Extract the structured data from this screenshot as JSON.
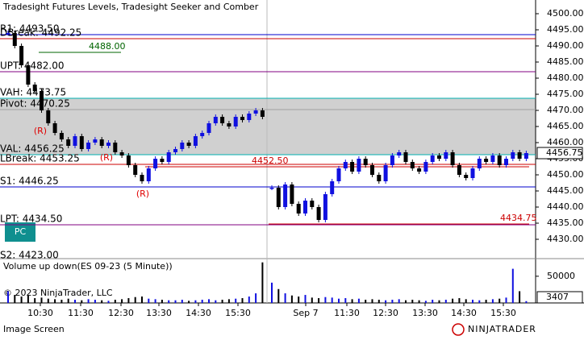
{
  "chart_data": {
    "type": "candlestick",
    "title": "Tradesight Futures Levels, Tradesight Seeker and Comber",
    "ylim": [
      4424.25,
      4504.25
    ],
    "yticks": [
      {
        "value": 4430,
        "label": "4430.00"
      },
      {
        "value": 4435,
        "label": "4435.00"
      },
      {
        "value": 4440,
        "label": "4440.00"
      },
      {
        "value": 4445,
        "label": "4445.00"
      },
      {
        "value": 4450,
        "label": "4450.00"
      },
      {
        "value": 4455,
        "label": "4455.00"
      },
      {
        "value": 4460,
        "label": "4460.00"
      },
      {
        "value": 4465,
        "label": "4465.00"
      },
      {
        "value": 4470,
        "label": "4470.00"
      },
      {
        "value": 4475,
        "label": "4475.00"
      },
      {
        "value": 4480,
        "label": "4480.00"
      },
      {
        "value": 4485,
        "label": "4485.00"
      },
      {
        "value": 4490,
        "label": "4490.00"
      },
      {
        "value": 4495,
        "label": "4495.00"
      },
      {
        "value": 4500,
        "label": "4500.00"
      }
    ],
    "x_labels": [
      "10:30",
      "11:30",
      "12:30",
      "13:30",
      "14:30",
      "15:30",
      "Sep 7",
      "11:30",
      "12:30",
      "13:30",
      "14:30",
      "15:30"
    ],
    "up_color": "#1010e0",
    "down_color": "#000000",
    "values": [
      4494,
      4490,
      4484,
      4478,
      4476,
      4470,
      4466,
      4463,
      4461,
      4459,
      4462,
      4458,
      4460,
      4461,
      4459,
      4460,
      4457,
      4456,
      4453,
      4450,
      4448,
      4452,
      4455,
      4454,
      4457,
      4458,
      4460,
      4459,
      4462,
      4463,
      4466,
      4468,
      4466,
      4465,
      4468,
      4467,
      4469,
      4470,
      4468,
      4446,
      4440,
      4447,
      4441,
      4438,
      4442,
      4440,
      4436,
      4444,
      4448,
      4452,
      4454,
      4451,
      4455,
      4453,
      4450,
      4448,
      4453,
      4456,
      4457,
      4454,
      4452,
      4451,
      4454,
      4456,
      4455,
      4457,
      4453,
      4450,
      4449,
      4452,
      4455,
      4454,
      4456,
      4453,
      4455,
      4457,
      4455,
      4456.75
    ],
    "levels": [
      {
        "label": "R1: 4493.50",
        "value": 4493.5,
        "color": "#0000cc"
      },
      {
        "label": "DBreak: 4492.25",
        "value": 4492.25,
        "color": "#cc0000"
      },
      {
        "label": "UPT: 4482.00",
        "value": 4482,
        "color": "#800080"
      },
      {
        "label": "VAH: 4473.75",
        "value": 4473.75,
        "color": "#00b0b0"
      },
      {
        "label": "Pivot: 4470.25",
        "value": 4470.25,
        "color": "#a0a0a0"
      },
      {
        "label": "VAL: 4456.25",
        "value": 4456.25,
        "color": "#00b0b0"
      },
      {
        "label": "LBreak: 4453.25",
        "value": 4453.25,
        "color": "#cc0000"
      },
      {
        "label": "S1: 4446.25",
        "value": 4446.25,
        "color": "#0000cc"
      },
      {
        "label": "LPT: 4434.50",
        "value": 4434.5,
        "color": "#800080"
      },
      {
        "label": "S2: 4423.00",
        "value": 4423,
        "color": "#0000cc"
      }
    ],
    "band_color": "#c4c4c4",
    "price_labels": [
      {
        "value": 4488,
        "label": "4488.00",
        "color": "#006400"
      },
      {
        "value": 4452.5,
        "label": "4452.50",
        "color": "#cc0000"
      },
      {
        "value": 4434.75,
        "label": "4434.75",
        "color": "#cc0000"
      }
    ],
    "markers": [
      "(R)",
      "(R)",
      "(R)"
    ],
    "button": "PC",
    "volume": {
      "title": "Volume up down(ES 09-23 (5 Minute))",
      "ylim": [
        0,
        80000
      ],
      "yticks": [
        50000
      ],
      "values": [
        22000,
        15000,
        12000,
        14000,
        9000,
        10000,
        8000,
        7000,
        6000,
        8000,
        6000,
        5000,
        7000,
        6000,
        5000,
        4000,
        6000,
        7000,
        9000,
        11000,
        12000,
        8000,
        7000,
        6000,
        5000,
        5000,
        6000,
        4000,
        5000,
        6000,
        7000,
        5000,
        6000,
        7000,
        8000,
        9000,
        12000,
        18000,
        76000,
        38000,
        26000,
        18000,
        14000,
        12000,
        15000,
        10000,
        9000,
        11000,
        10000,
        8000,
        9000,
        7000,
        8000,
        6000,
        7000,
        6000,
        5000,
        6000,
        7000,
        5000,
        6000,
        5000,
        4000,
        6000,
        5000,
        6000,
        8000,
        9000,
        7000,
        6000,
        5000,
        6000,
        7000,
        8000,
        10000,
        64000,
        22000,
        3407
      ]
    },
    "copyright": "© 2023 NinjaTrader, LLC",
    "footer": "Image Screen",
    "brand": "NINJATRADER"
  }
}
